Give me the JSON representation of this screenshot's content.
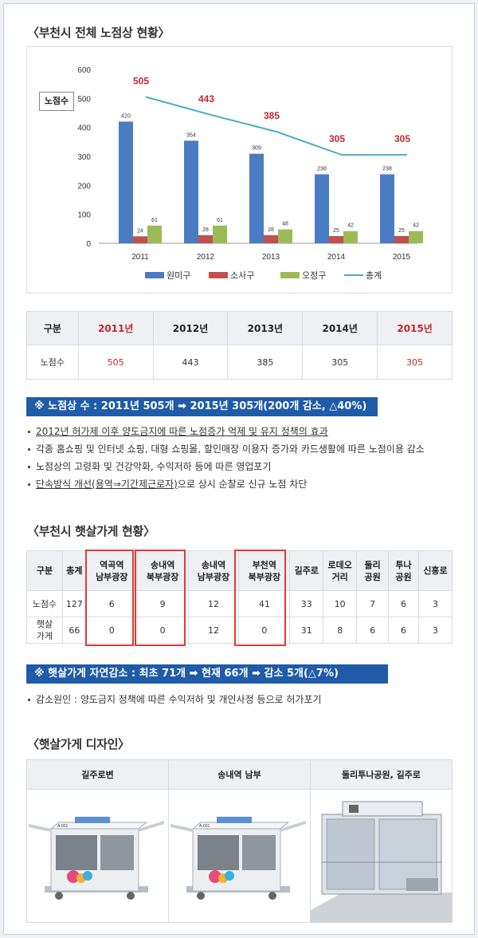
{
  "section1": {
    "title": "〈부천시 전체 노점상 현황〉"
  },
  "chart_data": {
    "type": "bar",
    "ylabel": "노점수",
    "ylim": [
      0,
      600
    ],
    "yticks": [
      0,
      100,
      200,
      300,
      400,
      500,
      600
    ],
    "categories": [
      "2011",
      "2012",
      "2013",
      "2014",
      "2015"
    ],
    "series": [
      {
        "name": "원미구",
        "color": "#4a7cc3",
        "values": [
          420,
          354,
          309,
          238,
          238
        ]
      },
      {
        "name": "소사구",
        "color": "#c0504d",
        "values": [
          24,
          28,
          28,
          25,
          25
        ]
      },
      {
        "name": "오정구",
        "color": "#9bbb59",
        "values": [
          61,
          61,
          48,
          42,
          42
        ]
      }
    ],
    "line": {
      "name": "총계",
      "color": "#4bacc6",
      "values": [
        505,
        443,
        385,
        305,
        305
      ],
      "label_color": "#c0282d"
    },
    "legend_position": "bottom"
  },
  "table1": {
    "headers": [
      "구분",
      "2011년",
      "2012년",
      "2013년",
      "2014년",
      "2015년"
    ],
    "row_label": "노점수",
    "values": [
      "505",
      "443",
      "385",
      "305",
      "305"
    ]
  },
  "banner1": "※ 노점상 수 : 2011년  505개  ➡ 2015년 305개(200개 감소, △40%)",
  "bullets1": [
    "2012년 허가제 이후 양도금지에 따른 노점증가 억제 및 유지 정책의 효과",
    "각종 홈쇼핑 및 인터넷 쇼핑, 대형 쇼핑몰, 할인매장 이용자 증가와 카드생활에 따른 노점이용 감소",
    "노점상의 고령화 및 건강악화, 수익저하 등에 따른 영업포기",
    {
      "underlined": "단속방식 개선(용역⇒기간제근로자)",
      "rest": "으로 상시 순찰로 신규 노점 차단"
    }
  ],
  "section2": {
    "title": "〈부천시 햇살가게 현황〉"
  },
  "table2": {
    "headers": [
      [
        "구분"
      ],
      [
        "총계"
      ],
      [
        "역곡역",
        "남부광장"
      ],
      [
        "송내역",
        "북부광장"
      ],
      [
        "송내역",
        "남부광장"
      ],
      [
        "부천역",
        "북부광장"
      ],
      [
        "길주로"
      ],
      [
        "로데오",
        "거리"
      ],
      [
        "둘리",
        "공원"
      ],
      [
        "투나",
        "공원"
      ],
      [
        "신흥로"
      ]
    ],
    "rows": [
      {
        "label": [
          "노점수"
        ],
        "values": [
          "127",
          "6",
          "9",
          "12",
          "41",
          "33",
          "10",
          "7",
          "6",
          "3"
        ]
      },
      {
        "label": [
          "햇살",
          "가게"
        ],
        "values": [
          "66",
          "0",
          "0",
          "12",
          "0",
          "31",
          "8",
          "6",
          "6",
          "3"
        ]
      }
    ]
  },
  "banner2": "※ 햇살가게 자연감소 : 최초 71개  ➡  현재 66개  ➡  감소 5개(△7%)",
  "bullets2": [
    "감소원인 : 양도금지 정책에 따른 수익저하 및 개인사정 등으로 허가포기"
  ],
  "section3": {
    "title": "〈햇살가게 디자인〉"
  },
  "designs": [
    {
      "label": "길주로변"
    },
    {
      "label": "송내역 남부"
    },
    {
      "label": "둘리투나공원, 길주로"
    }
  ],
  "kiosk_sign": "A-001"
}
